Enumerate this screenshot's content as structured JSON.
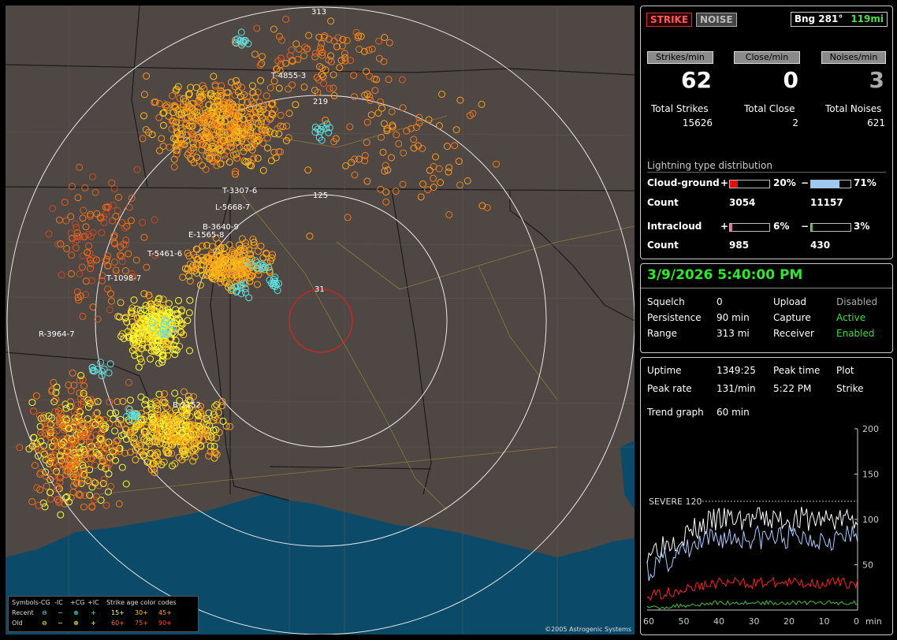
{
  "map": {
    "range_labels": [
      "313",
      "219",
      "125",
      "31"
    ],
    "cell_labels": [
      "T-4855-3",
      "T-3307-6",
      "L-5668-7",
      "B-3640-9",
      "E-1565-8",
      "T-5461-6",
      "T-1098-7",
      "R-3964-7",
      "B-2152"
    ],
    "copyright": "©2005 Astrogenic Systems"
  },
  "legend": {
    "symbols_title": "Symbols",
    "col_cg_neg": "-CG",
    "col_ic_neg": "-IC",
    "col_cg_pos": "+CG",
    "col_ic_pos": "+IC",
    "age_title": "Strike age color codes",
    "row_recent": "Recent",
    "row_old": "Old",
    "recent_ages": [
      "15+",
      "30+",
      "45+"
    ],
    "old_ages": [
      "60+",
      "75+",
      "90+"
    ],
    "age_colors": [
      "#ffff33",
      "#ffc21a",
      "#ff9a1a",
      "#f07a1a",
      "#e06020",
      "#c84a20"
    ]
  },
  "status": {
    "strike_btn": "STRIKE",
    "noise_btn": "NOISE",
    "bearing_label": "Bng 281°",
    "bearing_distance": "119mi"
  },
  "rates": {
    "strikes_header": "Strikes/min",
    "close_header": "Close/min",
    "noises_header": "Noises/min",
    "strikes_value": "62",
    "close_value": "0",
    "noises_value": "3",
    "total_strikes_label": "Total Strikes",
    "total_close_label": "Total Close",
    "total_noises_label": "Total Noises",
    "total_strikes": "15626",
    "total_close": "2",
    "total_noises": "621"
  },
  "distribution": {
    "title": "Lightning type distribution",
    "cg_label": "Cloud-ground",
    "ic_label": "Intracloud",
    "count_label": "Count",
    "plus": "+",
    "minus": "−",
    "cg_pos_pct": "20%",
    "cg_neg_pct": "71%",
    "cg_pos_count": "3054",
    "cg_neg_count": "11157",
    "ic_pos_pct": "6%",
    "ic_neg_pct": "3%",
    "ic_pos_count": "985",
    "ic_neg_count": "430",
    "cg_pos_fraction": 0.2,
    "cg_neg_fraction": 0.71,
    "ic_pos_fraction": 0.06,
    "ic_neg_fraction": 0.03
  },
  "settings": {
    "datetime": "3/9/2026 5:40:00 PM",
    "squelch_label": "Squelch",
    "squelch": "0",
    "persistence_label": "Persistence",
    "persistence": "90 min",
    "range_label": "Range",
    "range": "313 mi",
    "upload_label": "Upload",
    "upload": "Disabled",
    "capture_label": "Capture",
    "capture": "Active",
    "receiver_label": "Receiver",
    "receiver": "Enabled"
  },
  "stats": {
    "uptime_label": "Uptime",
    "uptime": "1349:25",
    "peak_time_label": "Peak time",
    "plot_label": "Plot",
    "peak_rate_label": "Peak rate",
    "peak_rate": "131/min",
    "peak_time": "5:22 PM",
    "plot": "Strike",
    "trend_label": "Trend graph",
    "trend_value": "60 min"
  },
  "chart_data": {
    "type": "line",
    "x_ticks": [
      "60",
      "50",
      "40",
      "30",
      "20",
      "10",
      "0"
    ],
    "x_unit": "min",
    "y_ticks": [
      "200",
      "150",
      "100",
      "50"
    ],
    "ylim": [
      0,
      200
    ],
    "severe_label": "SEVERE 120",
    "severe_value": 120,
    "series_colors": [
      "#ffffff",
      "#aaccff",
      "#ff2020",
      "#40c040"
    ]
  }
}
